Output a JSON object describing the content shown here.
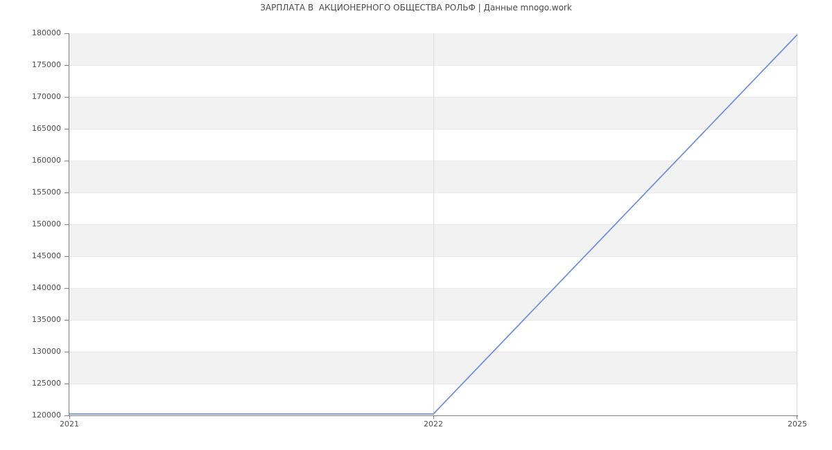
{
  "title": "ЗАРПЛАТА В  АКЦИОНЕРНОГО ОБЩЕСТВА РОЛЬФ | Данные mnogo.work",
  "chart_data": {
    "type": "line",
    "title": "ЗАРПЛАТА В  АКЦИОНЕРНОГО ОБЩЕСТВА РОЛЬФ | Данные mnogo.work",
    "categories": [
      "2021",
      "2022",
      "2025"
    ],
    "values": [
      120000,
      120000,
      180000
    ],
    "xlabel": "",
    "ylabel": "",
    "ylim": [
      120000,
      180000
    ],
    "ytick_step": 5000,
    "yticks_top_to_bottom": [
      "180000",
      "175000",
      "170000",
      "165000",
      "160000",
      "155000",
      "150000",
      "145000",
      "140000",
      "135000",
      "130000",
      "125000",
      "120000"
    ],
    "grid": true,
    "legend_position": "none",
    "band_pattern": "alternating horizontal bands, gray band at top interval",
    "colors": {
      "line": "#7291d8",
      "band": "#f2f2f2",
      "h_gridline": "#e9e9e9",
      "v_gridline": "#dcdcdc",
      "axis": "#808080",
      "tick": "#808080",
      "text": "#4d4d4d"
    }
  }
}
